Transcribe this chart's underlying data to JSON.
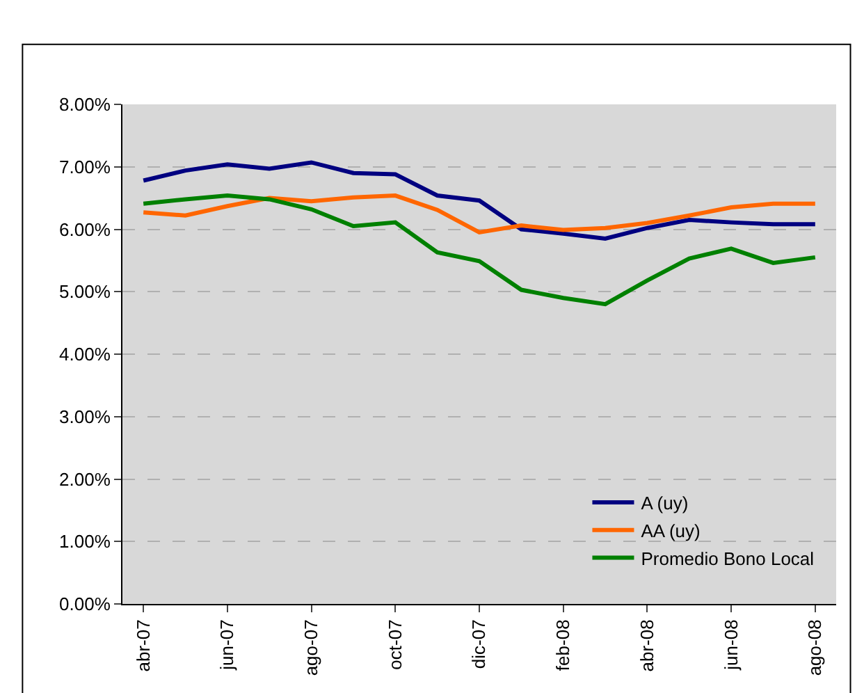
{
  "chart_data": {
    "type": "line",
    "categories": [
      "abr-07",
      null,
      "jun-07",
      null,
      "ago-07",
      null,
      "oct-07",
      null,
      "dic-07",
      null,
      "feb-08",
      null,
      "abr-08",
      null,
      "jun-08",
      null,
      "ago-08"
    ],
    "series": [
      {
        "name": "A (uy)",
        "color": "#000080",
        "values": [
          6.78,
          6.94,
          7.04,
          6.97,
          7.07,
          6.9,
          6.88,
          6.54,
          6.46,
          6.0,
          5.93,
          5.85,
          6.02,
          6.15,
          6.11,
          6.08,
          6.08
        ]
      },
      {
        "name": "AA (uy)",
        "color": "#ff6600",
        "values": [
          6.27,
          6.22,
          6.37,
          6.5,
          6.45,
          6.51,
          6.54,
          6.31,
          5.95,
          6.06,
          5.99,
          6.02,
          6.1,
          6.22,
          6.35,
          6.41,
          6.41
        ]
      },
      {
        "name": "Promedio Bono Local",
        "color": "#008000",
        "values": [
          6.41,
          6.48,
          6.54,
          6.48,
          6.32,
          6.05,
          6.11,
          5.63,
          5.49,
          5.03,
          4.9,
          4.8,
          5.18,
          5.53,
          5.69,
          5.46,
          5.55
        ]
      }
    ],
    "ylim": [
      0,
      8
    ],
    "yticks": [
      {
        "value": 0,
        "label": "0.00%"
      },
      {
        "value": 1,
        "label": "1.00%"
      },
      {
        "value": 2,
        "label": "2.00%"
      },
      {
        "value": 3,
        "label": "3.00%"
      },
      {
        "value": 4,
        "label": "4.00%"
      },
      {
        "value": 5,
        "label": "5.00%"
      },
      {
        "value": 6,
        "label": "6.00%"
      },
      {
        "value": 7,
        "label": "7.00%"
      },
      {
        "value": 8,
        "label": "8.00%"
      }
    ],
    "grid": "y",
    "legend": "bottom right",
    "marker": "none",
    "line_style": "solid"
  }
}
